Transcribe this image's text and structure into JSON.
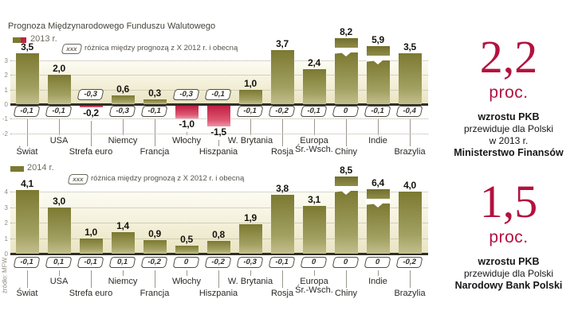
{
  "source": "źródło: MFW",
  "colors": {
    "bar_positive": "#7b7931",
    "bar_negative": "#c02044",
    "accent_crimson": "#b3123f",
    "plot_cream": "#ece7c7",
    "zero_axis": "#2f2e26"
  },
  "chart_data": [
    {
      "type": "bar",
      "title": "Prognoza Międzynarodowego Funduszu Walutowego",
      "legend": {
        "series": "2013 r.",
        "diff_box": "xxx",
        "diff_note": "różnica między prognozą z X 2012 r. i obecną"
      },
      "axis_ticks": [
        3,
        2,
        1,
        0,
        -1,
        -2
      ],
      "ylim": [
        -2,
        3.5
      ],
      "grid": true,
      "categories": [
        "Świat",
        "USA",
        "Strefa euro",
        "Niemcy",
        "Francja",
        "Włochy",
        "Hiszpania",
        "W. Brytania",
        "Rosja",
        "Europa Śr.-Wsch.",
        "Chiny",
        "Indie",
        "Brazylia"
      ],
      "categories_display": [
        "Świat",
        "USA",
        "Strefa euro",
        "Niemcy",
        "Francja",
        "Włochy",
        "Hiszpania",
        "W. Brytania",
        "Rosja",
        "Europa\nŚr.-Wsch.",
        "Chiny",
        "Indie",
        "Brazylia"
      ],
      "values": [
        3.5,
        2.0,
        -0.2,
        0.6,
        0.3,
        -1.0,
        -1.5,
        1.0,
        3.7,
        2.4,
        8.2,
        5.9,
        3.5
      ],
      "value_labels": [
        "3,5",
        "2,0",
        "-0,2",
        "0,6",
        "0,3",
        "-1,0",
        "-1,5",
        "1,0",
        "3,7",
        "2,4",
        "8,2",
        "5,9",
        "3,5"
      ],
      "diff_labels": [
        "-0,1",
        "-0,1",
        "-0,3",
        "-0,3",
        "-0,1",
        "-0,3",
        "-0,1",
        "-0,1",
        "-0,2",
        "-0,1",
        "0",
        "-0,1",
        "-0,4"
      ],
      "truncated_bars": [
        "Chiny",
        "Indie"
      ]
    },
    {
      "type": "bar",
      "title": "",
      "legend": {
        "series": "2014 r.",
        "diff_box": "xxx",
        "diff_note": "różnica między prognozą z X 2012 r. i obecną"
      },
      "axis_ticks": [
        4,
        3,
        2,
        1,
        0
      ],
      "ylim": [
        0,
        4.1
      ],
      "grid": true,
      "categories": [
        "Świat",
        "USA",
        "Strefa euro",
        "Niemcy",
        "Francja",
        "Włochy",
        "Hiszpania",
        "W. Brytania",
        "Rosja",
        "Europa Śr.-Wsch.",
        "Chiny",
        "Indie",
        "Brazylia"
      ],
      "categories_display": [
        "Świat",
        "USA",
        "Strefa euro",
        "Niemcy",
        "Francja",
        "Włochy",
        "Hiszpania",
        "W. Brytania",
        "Rosja",
        "Europa\nŚr.-Wsch.",
        "Chiny",
        "Indie",
        "Brazylia"
      ],
      "values": [
        4.1,
        3.0,
        1.0,
        1.4,
        0.9,
        0.5,
        0.8,
        1.9,
        3.8,
        3.1,
        8.5,
        6.4,
        4.0
      ],
      "value_labels": [
        "4,1",
        "3,0",
        "1,0",
        "1,4",
        "0,9",
        "0,5",
        "0,8",
        "1,9",
        "3,8",
        "3,1",
        "8,5",
        "6,4",
        "4,0"
      ],
      "diff_labels": [
        "-0,1",
        "0,1",
        "-0,1",
        "0,1",
        "-0,2",
        "0",
        "-0,2",
        "-0,3",
        "-0,1",
        "0",
        "0",
        "0",
        "-0,2"
      ],
      "truncated_bars": [
        "Chiny",
        "Indie"
      ]
    }
  ],
  "panels": [
    {
      "big": "2,2",
      "unit": "proc.",
      "lines": [
        {
          "text": "wzrostu PKB",
          "bold": true
        },
        {
          "text": "przewiduje dla Polski",
          "bold": false
        },
        {
          "text": "w 2013 r.",
          "bold": false
        },
        {
          "text": "Ministerstwo Finansów",
          "bold": true
        }
      ]
    },
    {
      "big": "1,5",
      "unit": "proc.",
      "lines": [
        {
          "text": "wzrostu PKB",
          "bold": true
        },
        {
          "text": "przewiduje dla Polski",
          "bold": false
        },
        {
          "text": "Narodowy Bank Polski",
          "bold": true
        }
      ]
    }
  ]
}
